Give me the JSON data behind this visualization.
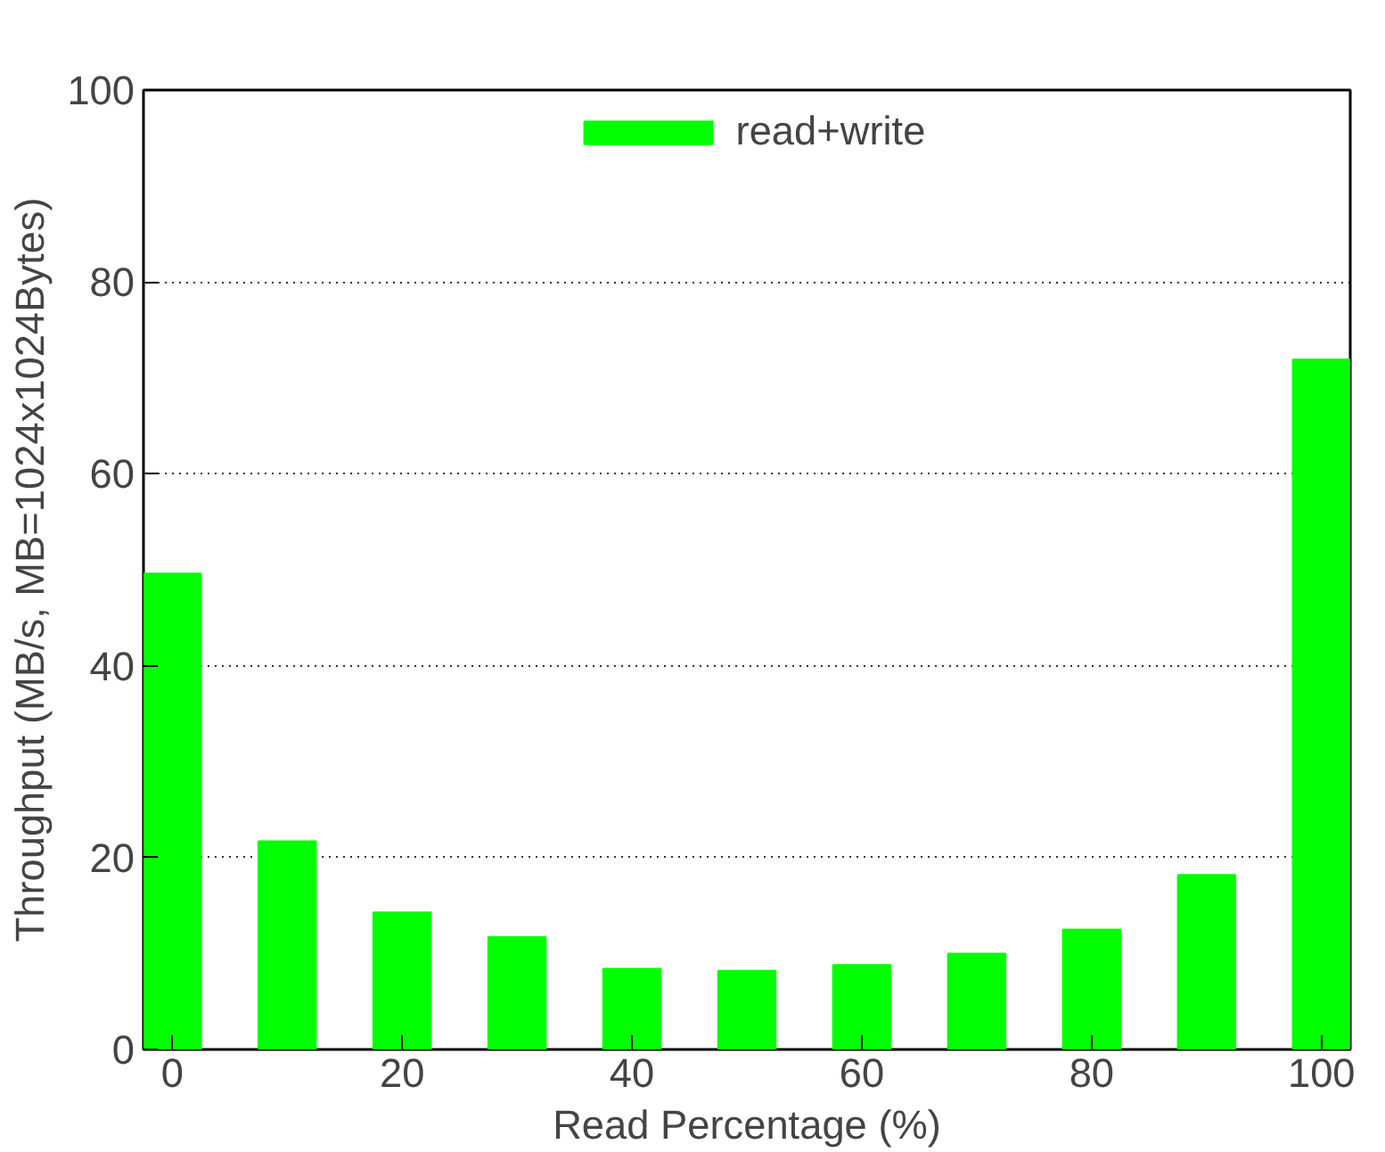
{
  "chart_data": {
    "type": "bar",
    "xlabel": "Read Percentage (%)",
    "ylabel": "Throughput (MB/s, MB=1024x1024Bytes)",
    "x": [
      0,
      10,
      20,
      30,
      40,
      50,
      60,
      70,
      80,
      90,
      100
    ],
    "series": [
      {
        "name": "read+write",
        "color": "#00ff00",
        "values": [
          49.6,
          21.7,
          14.3,
          11.7,
          8.4,
          8.2,
          8.8,
          10.0,
          12.5,
          18.2,
          71.9
        ]
      }
    ],
    "xlim": [
      -2.5,
      102.5
    ],
    "xticks": [
      0,
      20,
      40,
      60,
      80,
      100
    ],
    "ylim": [
      0,
      100
    ],
    "yticks": [
      0,
      20,
      40,
      60,
      80,
      100
    ],
    "grid": "y",
    "legend": "top"
  }
}
